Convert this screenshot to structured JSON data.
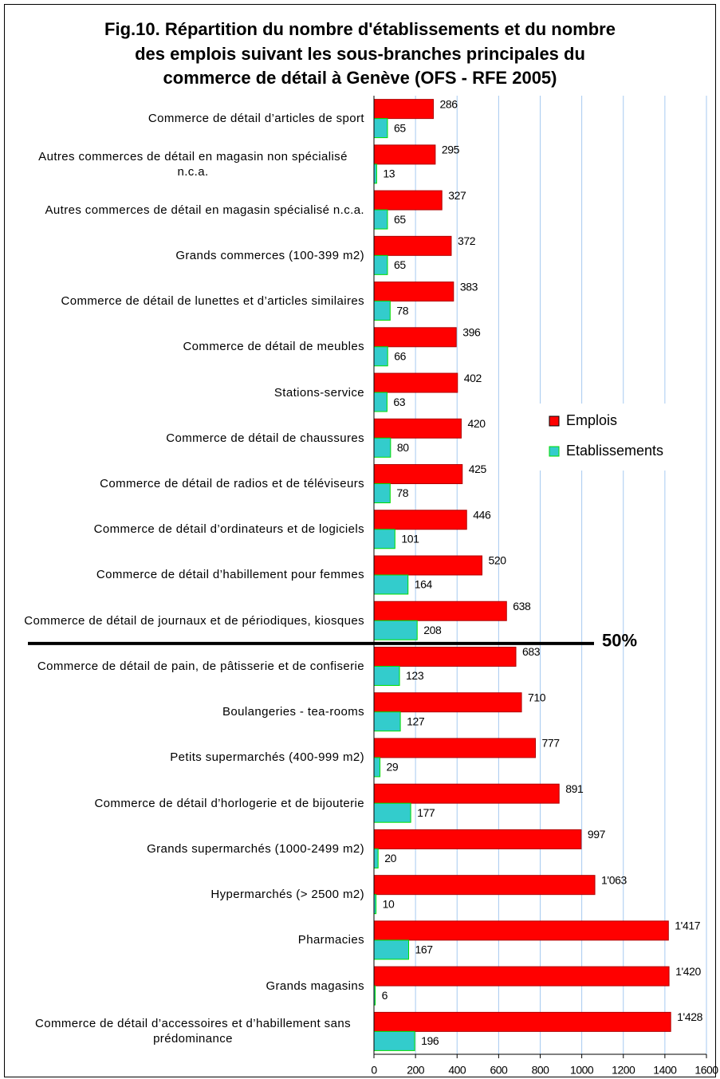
{
  "chart_data": {
    "type": "bar",
    "orientation": "horizontal",
    "title": [
      "Fig.10. Répartition du nombre d'établissements et du nombre",
      "des emplois suivant les sous-branches principales du",
      "commerce de détail à Genève (OFS - RFE 2005)"
    ],
    "categories": [
      "Commerce de détail d’articles de sport",
      "Autres commerces de détail en magasin non spécialisé n.c.a.",
      "Autres commerces de détail en magasin spécialisé n.c.a.",
      "Grands commerces (100-399 m2)",
      "Commerce de détail de lunettes et d’articles similaires",
      "Commerce de détail de meubles",
      "Stations-service",
      "Commerce de détail de chaussures",
      "Commerce de détail de radios et de téléviseurs",
      "Commerce de détail d’ordinateurs et de logiciels",
      "Commerce de détail d’habillement pour femmes",
      "Commerce de détail de journaux et de périodiques, kiosques",
      "Commerce de détail de pain, de pâtisserie et de confiserie",
      "Boulangeries - tea-rooms",
      "Petits supermarchés (400-999 m2)",
      "Commerce de détail d’horlogerie et de bijouterie",
      "Grands supermarchés (1000-2499 m2)",
      "Hypermarchés (> 2500 m2)",
      "Pharmacies",
      "Grands magasins",
      "Commerce de détail d’accessoires et d’habillement sans prédominance"
    ],
    "series": [
      {
        "name": "Emplois",
        "color": "#ff0000",
        "values": [
          286,
          295,
          327,
          372,
          383,
          396,
          402,
          420,
          425,
          446,
          520,
          638,
          683,
          710,
          777,
          891,
          997,
          1063,
          1417,
          1420,
          1428
        ],
        "value_labels": [
          "286",
          "295",
          "327",
          "372",
          "383",
          "396",
          "402",
          "420",
          "425",
          "446",
          "520",
          "638",
          "683",
          "710",
          "777",
          "891",
          "997",
          "1'063",
          "1'417",
          "1'420",
          "1'428"
        ]
      },
      {
        "name": "Etablissements",
        "color": "#33cccc",
        "values": [
          65,
          13,
          65,
          65,
          78,
          66,
          63,
          80,
          78,
          101,
          164,
          208,
          123,
          127,
          29,
          177,
          20,
          10,
          167,
          6,
          196
        ]
      }
    ],
    "xlim": [
      0,
      1600
    ],
    "xticks": [
      0,
      200,
      400,
      600,
      800,
      1000,
      1200,
      1400,
      1600
    ],
    "grid": true,
    "legend": "right",
    "annotations": [
      {
        "text": "50%"
      }
    ]
  }
}
